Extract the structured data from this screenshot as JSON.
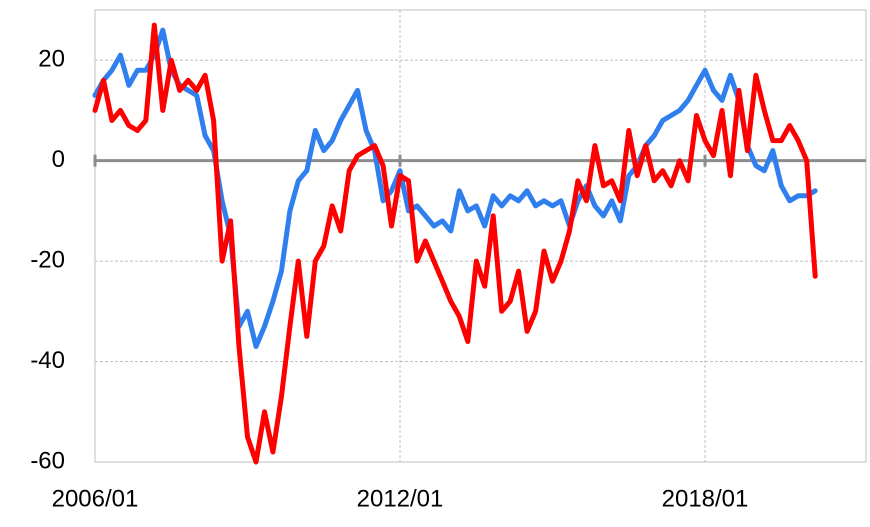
{
  "chart_data": {
    "type": "line",
    "x": [
      "2006/01",
      "2006/03",
      "2006/05",
      "2006/07",
      "2006/09",
      "2006/11",
      "2007/01",
      "2007/03",
      "2007/05",
      "2007/07",
      "2007/09",
      "2007/11",
      "2008/01",
      "2008/03",
      "2008/05",
      "2008/07",
      "2008/09",
      "2008/11",
      "2009/01",
      "2009/03",
      "2009/05",
      "2009/07",
      "2009/09",
      "2009/11",
      "2010/01",
      "2010/03",
      "2010/05",
      "2010/07",
      "2010/09",
      "2010/11",
      "2011/01",
      "2011/03",
      "2011/05",
      "2011/07",
      "2011/09",
      "2011/11",
      "2012/01",
      "2012/03",
      "2012/05",
      "2012/07",
      "2012/09",
      "2012/11",
      "2013/01",
      "2013/03",
      "2013/05",
      "2013/07",
      "2013/09",
      "2013/11",
      "2014/01",
      "2014/03",
      "2014/05",
      "2014/07",
      "2014/09",
      "2014/11",
      "2015/01",
      "2015/03",
      "2015/05",
      "2015/07",
      "2015/09",
      "2015/11",
      "2016/01",
      "2016/03",
      "2016/05",
      "2016/07",
      "2016/09",
      "2016/11",
      "2017/01",
      "2017/03",
      "2017/05",
      "2017/07",
      "2017/09",
      "2017/11",
      "2018/01",
      "2018/03",
      "2018/05",
      "2018/07",
      "2018/09",
      "2018/11",
      "2019/01",
      "2019/03",
      "2019/05",
      "2019/07",
      "2019/09",
      "2019/11",
      "2020/01",
      "2020/03"
    ],
    "series": [
      {
        "color": "#2f7fef",
        "values": [
          13,
          16,
          18,
          21,
          15,
          18,
          18,
          21,
          26,
          18,
          15,
          14,
          13,
          5,
          2,
          -8,
          -15,
          -33,
          -30,
          -37,
          -33,
          -28,
          -22,
          -10,
          -4,
          -2,
          6,
          2,
          4,
          8,
          11,
          14,
          6,
          2,
          -8,
          -6,
          -2,
          -10,
          -9,
          -11,
          -13,
          -12,
          -14,
          -6,
          -10,
          -9,
          -13,
          -7,
          -9,
          -7,
          -8,
          -6,
          -9,
          -8,
          -9,
          -8,
          -13,
          -8,
          -5,
          -9,
          -11,
          -8,
          -12,
          -3,
          -1,
          3,
          5,
          8,
          9,
          10,
          12,
          15,
          18,
          14,
          12,
          17,
          12,
          3,
          -1,
          -2,
          2,
          -5,
          -8,
          -7,
          -7,
          -6
        ]
      },
      {
        "color": "#ff0000",
        "values": [
          10,
          16,
          8,
          10,
          7,
          6,
          8,
          27,
          10,
          20,
          14,
          16,
          14,
          17,
          8,
          -20,
          -12,
          -37,
          -55,
          -60,
          -50,
          -58,
          -47,
          -33,
          -20,
          -35,
          -20,
          -17,
          -9,
          -14,
          -2,
          1,
          2,
          3,
          -1,
          -13,
          -3,
          -4,
          -20,
          -16,
          -20,
          -24,
          -28,
          -31,
          -36,
          -20,
          -25,
          -11,
          -30,
          -28,
          -22,
          -34,
          -30,
          -18,
          -24,
          -20,
          -14,
          -4,
          -8,
          3,
          -5,
          -4,
          -8,
          6,
          -3,
          3,
          -4,
          -2,
          -5,
          0,
          -4,
          9,
          4,
          1,
          10,
          -3,
          14,
          2,
          17,
          10,
          4,
          4,
          7,
          4,
          0,
          -23
        ]
      }
    ],
    "xlim": [
      "2006/01",
      "2021/03"
    ],
    "xticks": [
      "2006/01",
      "2012/01",
      "2018/01"
    ],
    "ylim": [
      -60,
      30
    ],
    "yticks": [
      -60,
      -40,
      -20,
      0,
      20
    ],
    "grid": true
  }
}
